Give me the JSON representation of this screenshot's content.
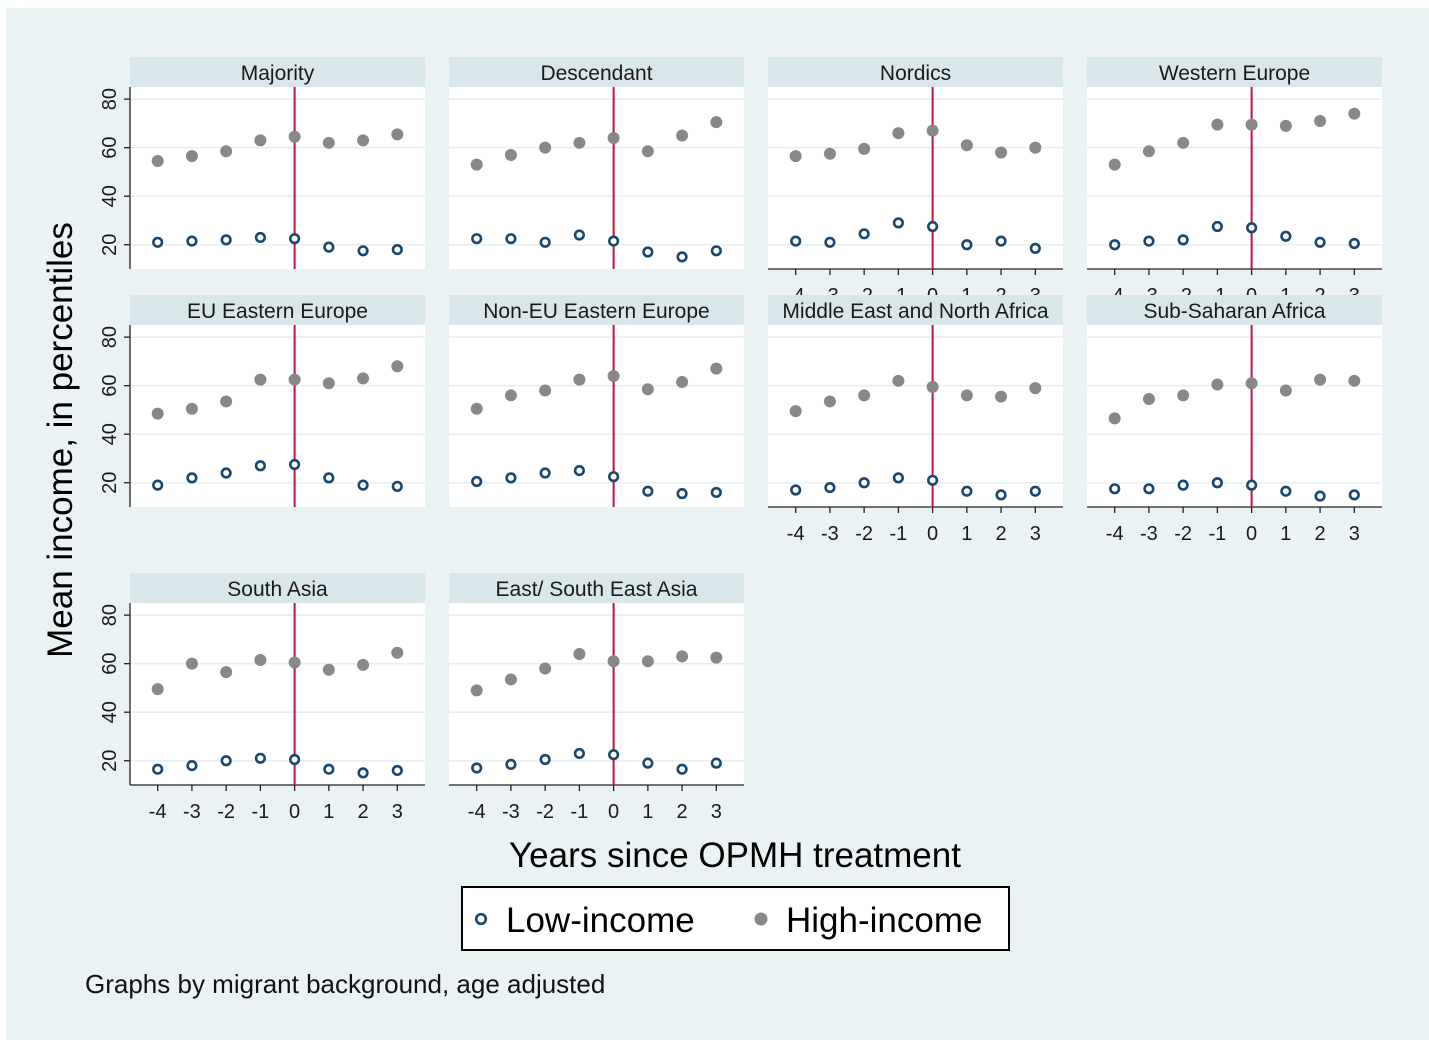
{
  "chart_data": {
    "type": "scatter",
    "y_axis_label": "Mean income, in percentiles",
    "x_axis_label": "Years since OPMH treatment",
    "note": "Graphs by migrant background, age adjusted",
    "x": [
      -4,
      -3,
      -2,
      -1,
      0,
      1,
      2,
      3
    ],
    "x_tick_labels": [
      "-4",
      "-3",
      "-2",
      "-1",
      "0",
      "1",
      "2",
      "3"
    ],
    "y_ticks": [
      20,
      40,
      60,
      80
    ],
    "y_tick_labels": [
      "20",
      "40",
      "60",
      "80"
    ],
    "ylim": [
      10,
      85
    ],
    "xlim": [
      -4.4,
      3.4
    ],
    "reference_line_x": 0,
    "legend": {
      "low_label": "Low-income",
      "high_label": "High-income",
      "position": "bottom"
    },
    "colors": {
      "low_income": "#1a476f",
      "high_income": "#888888",
      "reference_line": "#c0123c",
      "strip_background": "#d9e6ea",
      "plot_background": "#ffffff",
      "figure_background": "#eaf2f3",
      "grid": "#e6eef0"
    },
    "panels": [
      {
        "title": "Majority",
        "low": [
          21,
          21.5,
          22,
          23,
          22.5,
          19,
          17.5,
          18
        ],
        "high": [
          54.5,
          56.5,
          58.5,
          63,
          64.5,
          62,
          63,
          65.5
        ]
      },
      {
        "title": "Descendant",
        "low": [
          22.5,
          22.5,
          21,
          24,
          21.5,
          17,
          15,
          17.5
        ],
        "high": [
          53,
          57,
          60,
          62,
          64,
          58.5,
          65,
          70.5
        ]
      },
      {
        "title": "Nordics",
        "low": [
          21.5,
          21,
          24.5,
          29,
          27.5,
          20,
          21.5,
          18.5
        ],
        "high": [
          56.5,
          57.5,
          59.5,
          66,
          67,
          61,
          58,
          60
        ]
      },
      {
        "title": "Western Europe",
        "low": [
          20,
          21.5,
          22,
          27.5,
          27,
          23.5,
          21,
          20.5
        ],
        "high": [
          53,
          58.5,
          62,
          69.5,
          69.5,
          69,
          71,
          74
        ]
      },
      {
        "title": "EU Eastern Europe",
        "low": [
          19,
          22,
          24,
          27,
          27.5,
          22,
          19,
          18.5
        ],
        "high": [
          48.5,
          50.5,
          53.5,
          62.5,
          62.5,
          61,
          63,
          68
        ]
      },
      {
        "title": "Non-EU Eastern Europe",
        "low": [
          20.5,
          22,
          24,
          25,
          22.5,
          16.5,
          15.5,
          16
        ],
        "high": [
          50.5,
          56,
          58,
          62.5,
          64,
          58.5,
          61.5,
          67
        ]
      },
      {
        "title": "Middle East and North Africa",
        "low": [
          17,
          18,
          20,
          22,
          21,
          16.5,
          15,
          16.5
        ],
        "high": [
          49.5,
          53.5,
          56,
          62,
          59.5,
          56,
          55.5,
          59
        ]
      },
      {
        "title": "Sub-Saharan Africa",
        "low": [
          17.5,
          17.5,
          19,
          20,
          19,
          16.5,
          14.5,
          15
        ],
        "high": [
          46.5,
          54.5,
          56,
          60.5,
          61,
          58,
          62.5,
          62
        ]
      },
      {
        "title": "South Asia",
        "low": [
          16.5,
          18,
          20,
          21,
          20.5,
          16.5,
          15,
          16
        ],
        "high": [
          49.5,
          60,
          56.5,
          61.5,
          60.5,
          57.5,
          59.5,
          64.5
        ]
      },
      {
        "title": "East/ South East Asia",
        "low": [
          17,
          18.5,
          20.5,
          23,
          22.5,
          19,
          16.5,
          19
        ],
        "high": [
          49,
          53.5,
          58,
          64,
          61,
          61,
          63,
          62.5
        ]
      }
    ]
  }
}
